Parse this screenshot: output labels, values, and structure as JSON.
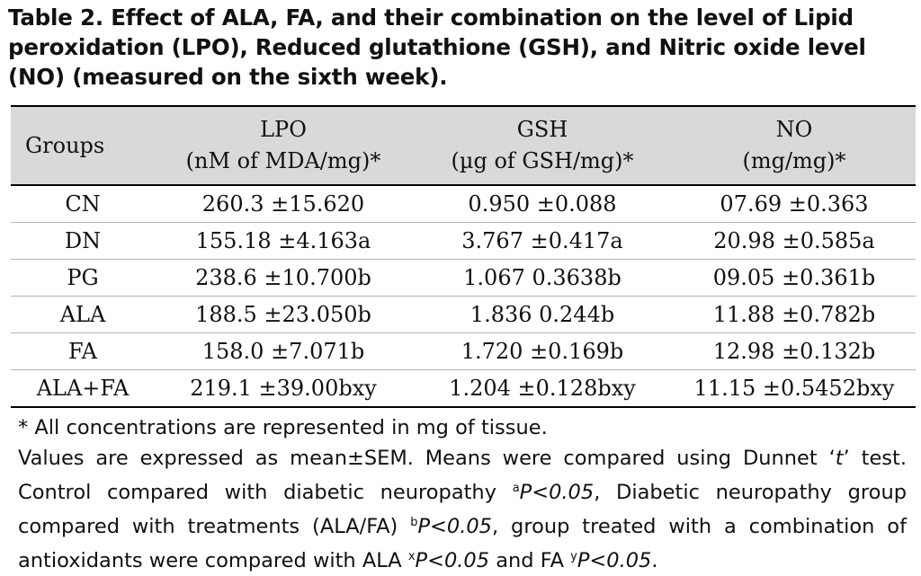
{
  "caption": "Table 2. Effect of ALA, FA, and their combination on the level of Lipid peroxidation (LPO), Reduced glutathione (GSH), and  Nitric oxide level (NO) (measured on the sixth week).",
  "table": {
    "headers": [
      {
        "line1": "Groups",
        "line2": ""
      },
      {
        "line1": "LPO",
        "line2": "(nM of MDA/mg)*"
      },
      {
        "line1": "GSH",
        "line2": "(µg of GSH/mg)*"
      },
      {
        "line1": "NO",
        "line2": "(mg/mg)*"
      }
    ],
    "rows": [
      [
        "CN",
        "260.3 ±15.620",
        "0.950 ±0.088",
        "07.69 ±0.363"
      ],
      [
        "DN",
        "155.18 ±4.163a",
        "3.767 ±0.417a",
        "20.98 ±0.585a"
      ],
      [
        "PG",
        "238.6 ±10.700b",
        "1.067  0.3638b",
        "09.05 ±0.361b"
      ],
      [
        "ALA",
        "188.5 ±23.050b",
        "1.836  0.244b",
        "11.88 ±0.782b"
      ],
      [
        "FA",
        "158.0 ±7.071b",
        "1.720 ±0.169b",
        "12.98 ±0.132b"
      ],
      [
        "ALA+FA",
        "219.1 ±39.00bxy",
        "1.204 ±0.128bxy",
        "11.15 ±0.5452bxy"
      ]
    ]
  },
  "notes": {
    "line1": "* All concentrations are represented in mg of tissue.",
    "p2_a": "Values are expressed as mean±SEM. Means were compared using Dunnet ‘",
    "p2_t": "t",
    "p2_b": "’ test. Control compared with diabetic neuropathy ",
    "sup_a": "a",
    "p_lt": "P<0.05",
    "p2_c": ", Diabetic neuropathy group compared with treatments (ALA/FA) ",
    "sup_b": "b",
    "p2_d": ", group treated with a combination of antioxidants were compared with ALA ",
    "sup_x": "x",
    "p2_e": " and FA ",
    "sup_y": "y",
    "p2_end": "."
  }
}
